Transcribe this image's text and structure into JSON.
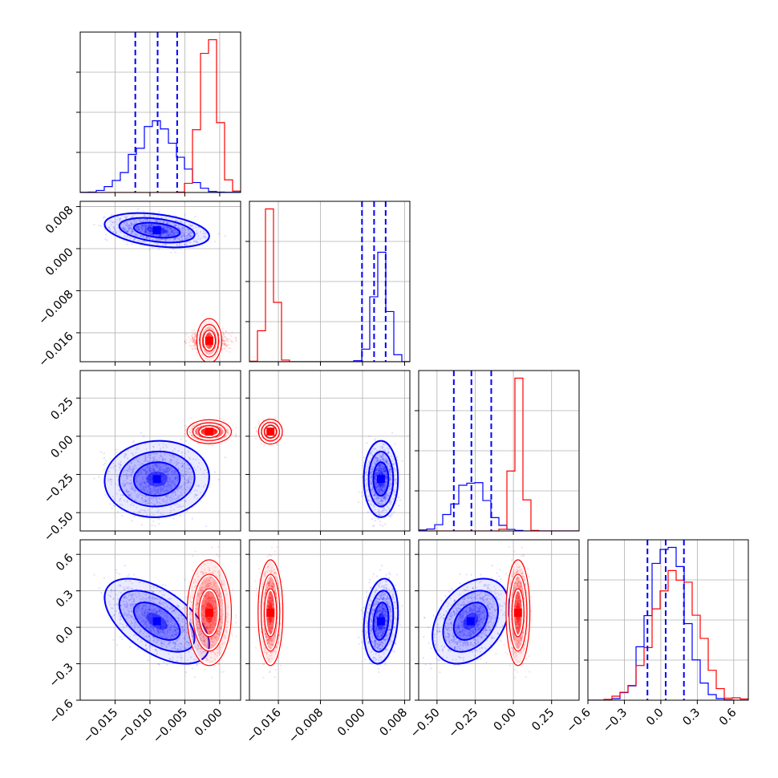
{
  "chart_data": {
    "type": "corner",
    "n_params": 4,
    "grid": true,
    "title": "",
    "params": [
      {
        "range": [
          -0.02,
          0.003
        ],
        "ticks": [
          -0.015,
          -0.01,
          -0.005,
          0.0
        ],
        "tick_labels": [
          "−0.015",
          "−0.010",
          "−0.005",
          "0.000"
        ]
      },
      {
        "range": [
          -0.0215,
          0.009
        ],
        "ticks": [
          -0.016,
          -0.008,
          0.0,
          0.008
        ],
        "tick_labels": [
          "−0.016",
          "−0.008",
          "0.000",
          "0.008"
        ]
      },
      {
        "range": [
          -0.62,
          0.43
        ],
        "ticks": [
          -0.5,
          -0.25,
          0.0,
          0.25
        ],
        "tick_labels": [
          "−0.50",
          "−0.25",
          "0.00",
          "0.25"
        ]
      },
      {
        "range": [
          -0.6,
          0.72
        ],
        "ticks": [
          -0.6,
          -0.3,
          0.0,
          0.3,
          0.6
        ],
        "tick_labels": [
          "−0.6",
          "−0.3",
          "0.0",
          "0.3",
          "0.6"
        ]
      }
    ],
    "series": [
      {
        "color": "#0000ff",
        "mean": [
          -0.009,
          0.0035,
          -0.28,
          0.05
        ],
        "sd": [
          0.003,
          0.0013,
          0.1,
          0.14
        ],
        "corr": [
          [
            1,
            -0.35,
            0.05,
            -0.55
          ],
          [
            -0.35,
            1,
            0.0,
            0.2
          ],
          [
            0.05,
            0.0,
            1,
            0.35
          ],
          [
            -0.55,
            0.2,
            0.35,
            1
          ]
        ],
        "quantile_lines": [
          [
            -0.0121,
            -0.0089,
            -0.0061
          ],
          [
            -0.0001,
            0.0022,
            0.0044
          ],
          [
            -0.39,
            -0.275,
            -0.145
          ],
          [
            -0.11,
            0.04,
            0.19
          ]
        ]
      },
      {
        "color": "#ff0000",
        "mean": [
          -0.0015,
          -0.0175,
          0.03,
          0.12
        ],
        "sd": [
          0.0012,
          0.00085,
          0.028,
          0.17
        ],
        "corr": [
          [
            1,
            0,
            0,
            0
          ],
          [
            0,
            1,
            0,
            0
          ],
          [
            0,
            0,
            1,
            0
          ],
          [
            0,
            0,
            0,
            1
          ]
        ],
        "quantile_lines": null
      }
    ]
  }
}
